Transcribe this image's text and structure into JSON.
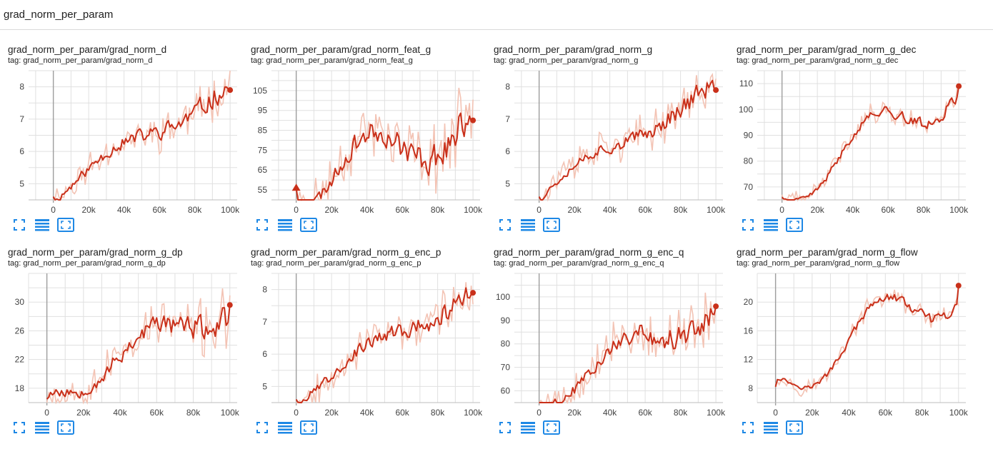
{
  "section": {
    "title": "grad_norm_per_param"
  },
  "toolbar": {
    "icons": [
      "expand-icon",
      "data-table-icon",
      "fit-domain-icon"
    ]
  },
  "colors": {
    "line": "#c9301a",
    "smoothed_bg": "#f3c3b4",
    "grid": "#e0e0e0",
    "axis": "#9e9e9e",
    "icon": "#1e88e5"
  },
  "chart_data": [
    {
      "title": "grad_norm_per_param/grad_norm_d",
      "tag": "tag: grad_norm_per_param/grad_norm_d",
      "type": "line",
      "xlim": [
        -14000,
        104000
      ],
      "ylim": [
        4.5,
        8.5
      ],
      "xticks": [
        0,
        20000,
        40000,
        60000,
        80000,
        100000
      ],
      "xtick_labels": [
        "0",
        "20k",
        "40k",
        "60k",
        "80k",
        "100k"
      ],
      "yticks": [
        5,
        6,
        7,
        8
      ],
      "ytick_labels": [
        "5",
        "6",
        "7",
        "8"
      ],
      "start": 4.6,
      "end": 7.9,
      "noise": 0.35,
      "bump": 0.2,
      "seed": 11,
      "smoothed_points": 100
    },
    {
      "title": "grad_norm_per_param/grad_norm_feat_g",
      "tag": "tag: grad_norm_per_param/grad_norm_feat_g",
      "type": "line",
      "xlim": [
        -14000,
        104000
      ],
      "ylim": [
        50,
        115
      ],
      "xticks": [
        0,
        20000,
        40000,
        60000,
        80000,
        100000
      ],
      "xtick_labels": [
        "0",
        "20k",
        "40k",
        "60k",
        "80k",
        "100k"
      ],
      "yticks": [
        55,
        65,
        75,
        85,
        95,
        105
      ],
      "ytick_labels": [
        "55",
        "65",
        "75",
        "85",
        "95",
        "105"
      ],
      "start": 56,
      "end": 90,
      "noise": 9,
      "bump": 12,
      "seed": 23,
      "start_marker": "triangle",
      "smoothed_points": 100
    },
    {
      "title": "grad_norm_per_param/grad_norm_g",
      "tag": "tag: grad_norm_per_param/grad_norm_g",
      "type": "line",
      "xlim": [
        -14000,
        104000
      ],
      "ylim": [
        4.5,
        8.5
      ],
      "xticks": [
        0,
        20000,
        40000,
        60000,
        80000,
        100000
      ],
      "xtick_labels": [
        "0",
        "20k",
        "40k",
        "60k",
        "80k",
        "100k"
      ],
      "yticks": [
        5,
        6,
        7,
        8
      ],
      "ytick_labels": [
        "5",
        "6",
        "7",
        "8"
      ],
      "start": 4.6,
      "end": 7.9,
      "noise": 0.35,
      "bump": 0.2,
      "seed": 37,
      "smoothed_points": 100
    },
    {
      "title": "grad_norm_per_param/grad_norm_g_dec",
      "tag": "tag: grad_norm_per_param/grad_norm_g_dec",
      "type": "line",
      "xlim": [
        -14000,
        104000
      ],
      "ylim": [
        65,
        115
      ],
      "xticks": [
        0,
        20000,
        40000,
        60000,
        80000,
        100000
      ],
      "xtick_labels": [
        "0",
        "20k",
        "40k",
        "60k",
        "80k",
        "100k"
      ],
      "yticks": [
        70,
        80,
        90,
        100,
        110
      ],
      "ytick_labels": [
        "70",
        "80",
        "90",
        "100",
        "110"
      ],
      "start": 66,
      "end": 109,
      "noise": 2.5,
      "bump": 8,
      "seed": 41,
      "smoothed_points": 100
    },
    {
      "title": "grad_norm_per_param/grad_norm_g_dp",
      "tag": "tag: grad_norm_per_param/grad_norm_g_dp",
      "type": "line",
      "xlim": [
        -10000,
        104000
      ],
      "ylim": [
        16,
        34
      ],
      "xticks": [
        0,
        20000,
        40000,
        60000,
        80000,
        100000
      ],
      "xtick_labels": [
        "0",
        "20k",
        "40k",
        "60k",
        "80k",
        "100k"
      ],
      "yticks": [
        18,
        22,
        26,
        30
      ],
      "ytick_labels": [
        "18",
        "22",
        "26",
        "30"
      ],
      "start": 16.5,
      "end": 29.6,
      "noise": 2.0,
      "bump": 2.0,
      "seed": 53,
      "smoothed_points": 100
    },
    {
      "title": "grad_norm_per_param/grad_norm_g_enc_p",
      "tag": "tag: grad_norm_per_param/grad_norm_g_enc_p",
      "type": "line",
      "xlim": [
        -14000,
        104000
      ],
      "ylim": [
        4.5,
        8.5
      ],
      "xticks": [
        0,
        20000,
        40000,
        60000,
        80000,
        100000
      ],
      "xtick_labels": [
        "0",
        "20k",
        "40k",
        "60k",
        "80k",
        "100k"
      ],
      "yticks": [
        5,
        6,
        7,
        8
      ],
      "ytick_labels": [
        "5",
        "6",
        "7",
        "8"
      ],
      "start": 4.6,
      "end": 7.9,
      "noise": 0.35,
      "bump": 0.2,
      "seed": 67,
      "smoothed_points": 100
    },
    {
      "title": "grad_norm_per_param/grad_norm_g_enc_q",
      "tag": "tag: grad_norm_per_param/grad_norm_g_enc_q",
      "type": "line",
      "xlim": [
        -14000,
        104000
      ],
      "ylim": [
        55,
        110
      ],
      "xticks": [
        0,
        20000,
        40000,
        60000,
        80000,
        100000
      ],
      "xtick_labels": [
        "0",
        "20k",
        "40k",
        "60k",
        "80k",
        "100k"
      ],
      "yticks": [
        60,
        70,
        80,
        90,
        100
      ],
      "ytick_labels": [
        "60",
        "70",
        "80",
        "90",
        "100"
      ],
      "start": 55,
      "end": 96,
      "noise": 6,
      "bump": 6,
      "seed": 79,
      "smoothed_points": 100
    },
    {
      "title": "grad_norm_per_param/grad_norm_g_flow",
      "tag": "tag: grad_norm_per_param/grad_norm_g_flow",
      "type": "line",
      "xlim": [
        -10000,
        104000
      ],
      "ylim": [
        6,
        24
      ],
      "xticks": [
        0,
        20000,
        40000,
        60000,
        80000,
        100000
      ],
      "xtick_labels": [
        "0",
        "20k",
        "40k",
        "60k",
        "80k",
        "100k"
      ],
      "yticks": [
        8,
        12,
        16,
        20
      ],
      "ytick_labels": [
        "8",
        "12",
        "16",
        "20"
      ],
      "start": 8.2,
      "end": 22.3,
      "noise": 0.8,
      "bump": 3.5,
      "seed": 97,
      "smoothed_points": 100
    }
  ]
}
